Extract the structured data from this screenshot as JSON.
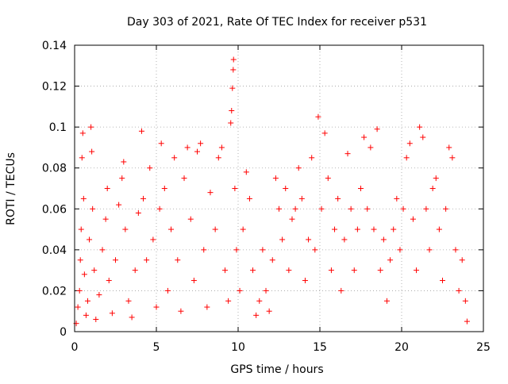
{
  "chart_data": {
    "type": "scatter",
    "title": "Day 303 of 2021, Rate Of TEC Index for receiver p531",
    "xlabel": "GPS time / hours",
    "ylabel": "ROTI / TECUs",
    "xlim": [
      0,
      25
    ],
    "ylim": [
      0,
      0.14
    ],
    "xticks": [
      0,
      5,
      10,
      15,
      20,
      25
    ],
    "xtick_labels": [
      "0",
      "5",
      "10",
      "15",
      "20",
      "25"
    ],
    "yticks": [
      0,
      0.02,
      0.04,
      0.06,
      0.08,
      0.1,
      0.12,
      0.14
    ],
    "ytick_labels": [
      "0",
      "0.02",
      "0.04",
      "0.06",
      "0.08",
      "0.1",
      "0.12",
      "0.14"
    ],
    "grid": true,
    "marker": "+",
    "color": "#ff0000",
    "series": [
      {
        "points": [
          [
            0.1,
            0.004
          ],
          [
            0.2,
            0.012
          ],
          [
            0.3,
            0.02
          ],
          [
            0.35,
            0.035
          ],
          [
            0.4,
            0.05
          ],
          [
            0.45,
            0.085
          ],
          [
            0.5,
            0.097
          ],
          [
            0.55,
            0.065
          ],
          [
            0.6,
            0.028
          ],
          [
            0.7,
            0.008
          ],
          [
            0.8,
            0.015
          ],
          [
            0.9,
            0.045
          ],
          [
            1.0,
            0.1
          ],
          [
            1.05,
            0.088
          ],
          [
            1.1,
            0.06
          ],
          [
            1.2,
            0.03
          ],
          [
            1.3,
            0.006
          ],
          [
            1.5,
            0.018
          ],
          [
            1.7,
            0.04
          ],
          [
            1.9,
            0.055
          ],
          [
            2.0,
            0.07
          ],
          [
            2.1,
            0.025
          ],
          [
            2.3,
            0.009
          ],
          [
            2.5,
            0.035
          ],
          [
            2.7,
            0.062
          ],
          [
            2.9,
            0.075
          ],
          [
            3.0,
            0.083
          ],
          [
            3.1,
            0.05
          ],
          [
            3.3,
            0.015
          ],
          [
            3.5,
            0.007
          ],
          [
            3.7,
            0.03
          ],
          [
            3.9,
            0.058
          ],
          [
            4.1,
            0.098
          ],
          [
            4.2,
            0.065
          ],
          [
            4.4,
            0.035
          ],
          [
            4.6,
            0.08
          ],
          [
            4.8,
            0.045
          ],
          [
            5.0,
            0.012
          ],
          [
            5.2,
            0.06
          ],
          [
            5.3,
            0.092
          ],
          [
            5.5,
            0.07
          ],
          [
            5.7,
            0.02
          ],
          [
            5.9,
            0.05
          ],
          [
            6.1,
            0.085
          ],
          [
            6.3,
            0.035
          ],
          [
            6.5,
            0.01
          ],
          [
            6.7,
            0.075
          ],
          [
            6.9,
            0.09
          ],
          [
            7.1,
            0.055
          ],
          [
            7.3,
            0.025
          ],
          [
            7.5,
            0.088
          ],
          [
            7.7,
            0.092
          ],
          [
            7.9,
            0.04
          ],
          [
            8.1,
            0.012
          ],
          [
            8.3,
            0.068
          ],
          [
            8.6,
            0.05
          ],
          [
            8.8,
            0.085
          ],
          [
            9.0,
            0.09
          ],
          [
            9.2,
            0.03
          ],
          [
            9.4,
            0.015
          ],
          [
            9.55,
            0.102
          ],
          [
            9.6,
            0.108
          ],
          [
            9.65,
            0.119
          ],
          [
            9.7,
            0.128
          ],
          [
            9.72,
            0.133
          ],
          [
            9.8,
            0.07
          ],
          [
            9.9,
            0.04
          ],
          [
            10.1,
            0.02
          ],
          [
            10.3,
            0.05
          ],
          [
            10.5,
            0.078
          ],
          [
            10.7,
            0.065
          ],
          [
            10.9,
            0.03
          ],
          [
            11.1,
            0.008
          ],
          [
            11.3,
            0.015
          ],
          [
            11.5,
            0.04
          ],
          [
            11.7,
            0.02
          ],
          [
            11.9,
            0.01
          ],
          [
            12.1,
            0.035
          ],
          [
            12.3,
            0.075
          ],
          [
            12.5,
            0.06
          ],
          [
            12.7,
            0.045
          ],
          [
            12.9,
            0.07
          ],
          [
            13.1,
            0.03
          ],
          [
            13.3,
            0.055
          ],
          [
            13.5,
            0.06
          ],
          [
            13.7,
            0.08
          ],
          [
            13.9,
            0.065
          ],
          [
            14.1,
            0.025
          ],
          [
            14.3,
            0.045
          ],
          [
            14.5,
            0.085
          ],
          [
            14.7,
            0.04
          ],
          [
            14.9,
            0.105
          ],
          [
            15.1,
            0.06
          ],
          [
            15.3,
            0.097
          ],
          [
            15.5,
            0.075
          ],
          [
            15.7,
            0.03
          ],
          [
            15.9,
            0.05
          ],
          [
            16.1,
            0.065
          ],
          [
            16.3,
            0.02
          ],
          [
            16.5,
            0.045
          ],
          [
            16.7,
            0.087
          ],
          [
            16.9,
            0.06
          ],
          [
            17.1,
            0.03
          ],
          [
            17.3,
            0.05
          ],
          [
            17.5,
            0.07
          ],
          [
            17.7,
            0.095
          ],
          [
            17.9,
            0.06
          ],
          [
            18.1,
            0.09
          ],
          [
            18.3,
            0.05
          ],
          [
            18.5,
            0.099
          ],
          [
            18.7,
            0.03
          ],
          [
            18.9,
            0.045
          ],
          [
            19.1,
            0.015
          ],
          [
            19.3,
            0.035
          ],
          [
            19.5,
            0.05
          ],
          [
            19.7,
            0.065
          ],
          [
            19.9,
            0.04
          ],
          [
            20.1,
            0.06
          ],
          [
            20.3,
            0.085
          ],
          [
            20.5,
            0.092
          ],
          [
            20.7,
            0.055
          ],
          [
            20.9,
            0.03
          ],
          [
            21.1,
            0.1
          ],
          [
            21.3,
            0.095
          ],
          [
            21.5,
            0.06
          ],
          [
            21.7,
            0.04
          ],
          [
            21.9,
            0.07
          ],
          [
            22.1,
            0.075
          ],
          [
            22.3,
            0.05
          ],
          [
            22.5,
            0.025
          ],
          [
            22.7,
            0.06
          ],
          [
            22.9,
            0.09
          ],
          [
            23.1,
            0.085
          ],
          [
            23.3,
            0.04
          ],
          [
            23.5,
            0.02
          ],
          [
            23.7,
            0.035
          ],
          [
            23.9,
            0.015
          ],
          [
            24.0,
            0.005
          ]
        ]
      }
    ]
  }
}
